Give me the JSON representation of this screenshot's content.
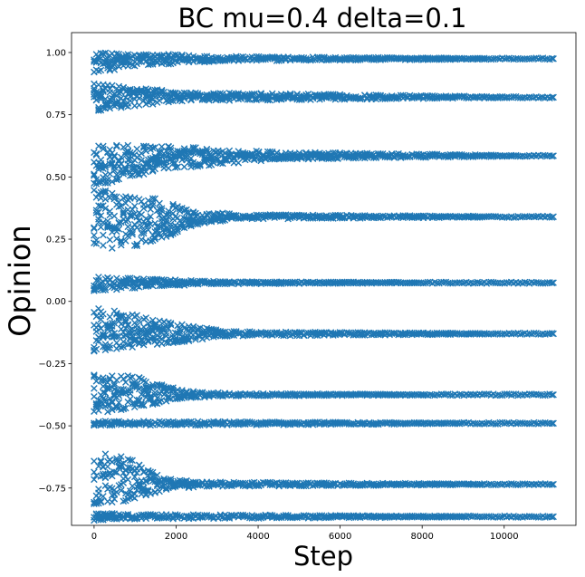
{
  "chart_data": {
    "type": "scatter",
    "title": "BC mu=0.4 delta=0.1",
    "xlabel": "Step",
    "ylabel": "Opinion",
    "xlim": [
      -550,
      11750
    ],
    "ylim": [
      -0.9,
      1.08
    ],
    "xticks": [
      0,
      2000,
      4000,
      6000,
      8000,
      10000
    ],
    "yticks": [
      -0.75,
      -0.5,
      -0.25,
      0.0,
      0.25,
      0.5,
      0.75,
      1.0
    ],
    "ytick_labels": [
      "−0.75",
      "−0.50",
      "−0.25",
      "0.00",
      "0.25",
      "0.50",
      "0.75",
      "1.00"
    ],
    "marker": "x",
    "color": "#1f77b4",
    "grid": false,
    "step_end": 11200,
    "series": [
      {
        "final": 0.975,
        "spread": [
          [
            0,
            0.92,
            1.0
          ],
          [
            1500,
            0.95,
            0.995
          ],
          [
            3000,
            0.965,
            0.985
          ],
          [
            11200,
            0.975,
            0.975
          ]
        ]
      },
      {
        "final": 0.82,
        "spread": [
          [
            0,
            0.76,
            0.875
          ],
          [
            1000,
            0.785,
            0.86
          ],
          [
            2200,
            0.805,
            0.84
          ],
          [
            11200,
            0.82,
            0.82
          ]
        ]
      },
      {
        "final": 0.585,
        "spread": [
          [
            0,
            0.46,
            0.63
          ],
          [
            1700,
            0.53,
            0.625
          ],
          [
            4500,
            0.57,
            0.6
          ],
          [
            11200,
            0.585,
            0.585
          ]
        ]
      },
      {
        "final": 0.34,
        "spread": [
          [
            0,
            0.2,
            0.45
          ],
          [
            1400,
            0.23,
            0.42
          ],
          [
            2300,
            0.3,
            0.37
          ],
          [
            3500,
            0.33,
            0.35
          ],
          [
            11200,
            0.34,
            0.34
          ]
        ]
      },
      {
        "final": 0.075,
        "spread": [
          [
            0,
            0.04,
            0.1
          ],
          [
            1500,
            0.06,
            0.09
          ],
          [
            3000,
            0.07,
            0.08
          ],
          [
            11200,
            0.075,
            0.075
          ]
        ]
      },
      {
        "final": -0.13,
        "spread": [
          [
            0,
            -0.2,
            -0.02
          ],
          [
            1800,
            -0.17,
            -0.08
          ],
          [
            3200,
            -0.14,
            -0.12
          ],
          [
            11200,
            -0.13,
            -0.13
          ]
        ]
      },
      {
        "final": -0.375,
        "spread": [
          [
            0,
            -0.455,
            -0.28
          ],
          [
            1000,
            -0.43,
            -0.3
          ],
          [
            2200,
            -0.39,
            -0.36
          ],
          [
            3500,
            -0.38,
            -0.37
          ],
          [
            11200,
            -0.375,
            -0.375
          ]
        ]
      },
      {
        "final": -0.49,
        "spread": [
          [
            0,
            -0.5,
            -0.48
          ],
          [
            11200,
            -0.49,
            -0.49
          ]
        ]
      },
      {
        "final": -0.735,
        "spread": [
          [
            0,
            -0.82,
            -0.6
          ],
          [
            900,
            -0.8,
            -0.63
          ],
          [
            1700,
            -0.76,
            -0.71
          ],
          [
            2500,
            -0.745,
            -0.725
          ],
          [
            11200,
            -0.735,
            -0.735
          ]
        ]
      },
      {
        "final": -0.865,
        "spread": [
          [
            0,
            -0.885,
            -0.84
          ],
          [
            600,
            -0.875,
            -0.855
          ],
          [
            11200,
            -0.865,
            -0.865
          ]
        ]
      }
    ]
  }
}
